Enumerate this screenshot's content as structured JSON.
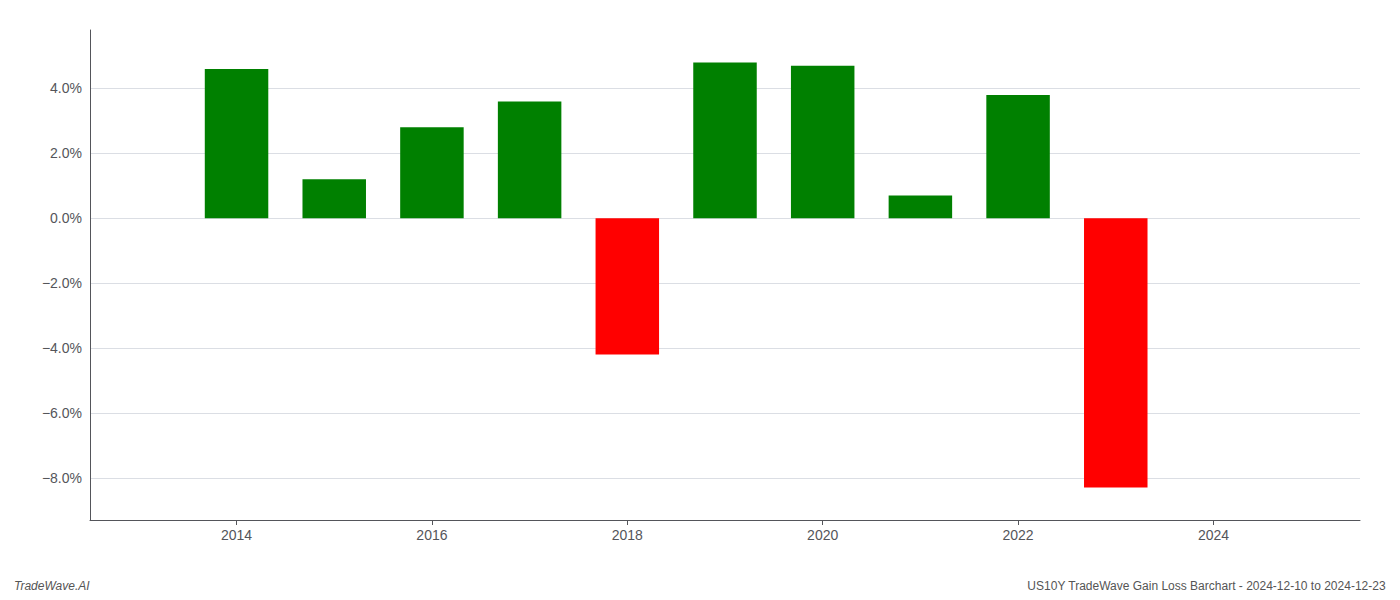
{
  "chart_data": {
    "type": "bar",
    "x": [
      2014,
      2015,
      2016,
      2017,
      2018,
      2019,
      2020,
      2021,
      2022,
      2023
    ],
    "values": [
      0.046,
      0.012,
      0.028,
      0.036,
      -0.042,
      0.048,
      0.047,
      0.007,
      0.038,
      -0.083
    ],
    "colors": [
      "#008000",
      "#008000",
      "#008000",
      "#008000",
      "#ff0000",
      "#008000",
      "#008000",
      "#008000",
      "#008000",
      "#ff0000"
    ],
    "xlim": [
      2012.5,
      2025.5
    ],
    "xticks": [
      2014,
      2016,
      2018,
      2020,
      2022,
      2024
    ],
    "ylim": [
      -0.093,
      0.058
    ],
    "yticks": [
      {
        "value": -0.08,
        "label": "−8.0%"
      },
      {
        "value": -0.06,
        "label": "−6.0%"
      },
      {
        "value": -0.04,
        "label": "−4.0%"
      },
      {
        "value": -0.02,
        "label": "−2.0%"
      },
      {
        "value": 0.0,
        "label": "0.0%"
      },
      {
        "value": 0.02,
        "label": "2.0%"
      },
      {
        "value": 0.04,
        "label": "4.0%"
      }
    ],
    "grid": true,
    "annotations": [
      "TradeWave.AI",
      "US10Y TradeWave Gain Loss Barchart - 2024-12-10 to 2024-12-23"
    ]
  }
}
